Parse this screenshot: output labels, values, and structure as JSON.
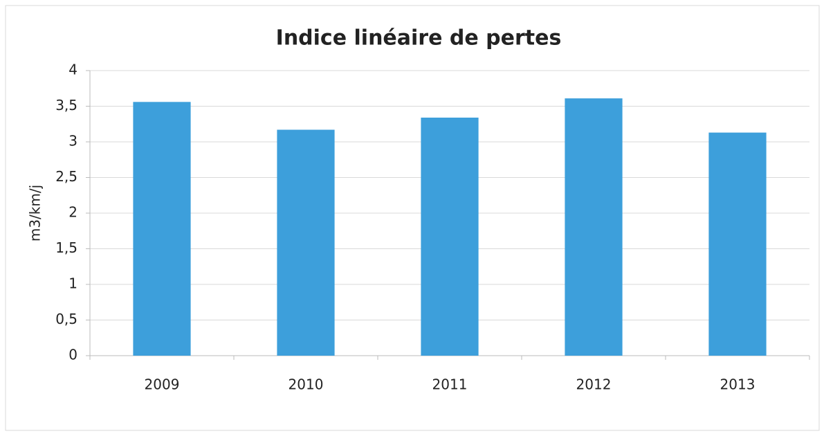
{
  "chart_data": {
    "type": "bar",
    "title": "Indice linéaire de pertes",
    "ylabel": "m3/km/j",
    "categories": [
      "2009",
      "2010",
      "2011",
      "2012",
      "2013"
    ],
    "values": [
      3.56,
      3.17,
      3.34,
      3.61,
      3.13
    ],
    "color": "#3d9fdb",
    "ylim": [
      0,
      4
    ],
    "yticks": [
      0,
      {
        "value": 0.5,
        "label": "0,5"
      },
      1,
      {
        "value": 1.5,
        "label": "1,5"
      },
      2,
      {
        "value": 2.5,
        "label": "2,5"
      },
      3,
      {
        "value": 3.5,
        "label": "3,5"
      },
      4
    ],
    "grid": true
  }
}
